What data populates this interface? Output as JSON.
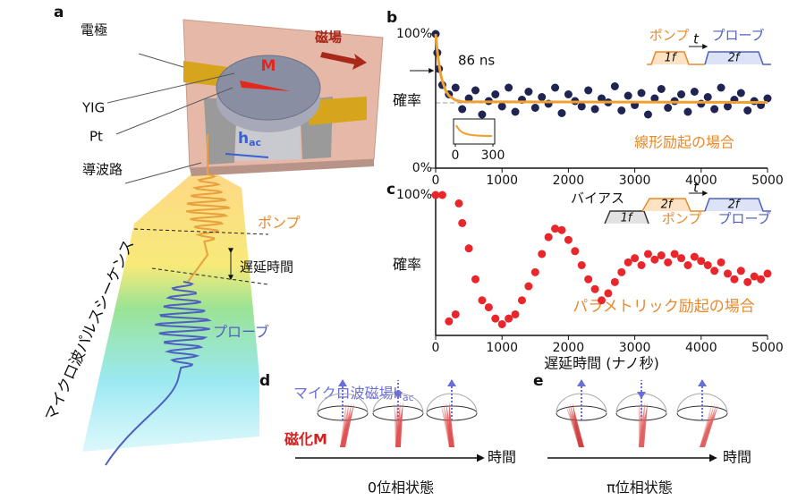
{
  "chart_data": [
    {
      "type": "scatter",
      "label": "b",
      "ylabel": "確率",
      "xlim": [
        0,
        5000
      ],
      "ylim": [
        0,
        100
      ],
      "xticks": [
        0,
        1000,
        2000,
        3000,
        4000,
        5000
      ],
      "yticks": [
        {
          "value": 0,
          "label": "0%"
        },
        {
          "value": 100,
          "label": "100%"
        }
      ],
      "series": [
        {
          "mode": "markers",
          "color": "#1f2452",
          "x": [
            0,
            25,
            50,
            100,
            200,
            300,
            400,
            500,
            600,
            700,
            800,
            900,
            1000,
            1100,
            1200,
            1300,
            1400,
            1500,
            1600,
            1700,
            1800,
            1900,
            2000,
            2100,
            2200,
            2300,
            2400,
            2500,
            2600,
            2700,
            2800,
            2900,
            3000,
            3100,
            3200,
            3300,
            3400,
            3500,
            3600,
            3700,
            3800,
            3900,
            4000,
            4100,
            4200,
            4300,
            4400,
            4500,
            4600,
            4700,
            4800,
            4900,
            5000
          ],
          "values": [
            100,
            86,
            74,
            62,
            55,
            60,
            44,
            52,
            58,
            40,
            50,
            55,
            46,
            60,
            42,
            51,
            57,
            45,
            53,
            48,
            60,
            41,
            55,
            50,
            46,
            58,
            44,
            52,
            49,
            61,
            43,
            54,
            47,
            56,
            40,
            52,
            59,
            45,
            50,
            55,
            42,
            57,
            48,
            53,
            44,
            60,
            46,
            51,
            56,
            43,
            50,
            47,
            52
          ]
        },
        {
          "mode": "line",
          "color": "#f0a030",
          "x": [
            0,
            20,
            40,
            60,
            80,
            100,
            150,
            200,
            300,
            400,
            5000
          ],
          "values": [
            100,
            89.4,
            81,
            74.4,
            69.1,
            65,
            57.9,
            54,
            50.6,
            49.5,
            49
          ]
        }
      ],
      "inset_xticks": [
        0,
        300
      ],
      "annotations": {
        "delay": "86 ns",
        "case": "線形励起の場合",
        "pump": "ポンプ",
        "probe": "プローブ",
        "pump_box": "1f",
        "probe_box": "2f",
        "t": "t"
      }
    },
    {
      "type": "scatter",
      "label": "c",
      "ylabel": "確率",
      "xlabel": "遅延時間 (ナノ秒)",
      "xlim": [
        0,
        5000
      ],
      "ylim": [
        0,
        100
      ],
      "xticks": [
        0,
        1000,
        2000,
        3000,
        4000,
        5000
      ],
      "yticks": [
        {
          "value": 100,
          "label": "100%"
        }
      ],
      "series": [
        {
          "mode": "markers",
          "color": "#e8262b",
          "x": [
            0,
            100,
            200,
            300,
            350,
            400,
            500,
            600,
            700,
            800,
            900,
            1000,
            1100,
            1200,
            1300,
            1400,
            1500,
            1600,
            1700,
            1800,
            1900,
            2000,
            2100,
            2200,
            2300,
            2400,
            2500,
            2600,
            2700,
            2800,
            2900,
            3000,
            3100,
            3200,
            3300,
            3400,
            3500,
            3600,
            3700,
            3800,
            3900,
            4000,
            4100,
            4200,
            4300,
            4400,
            4500,
            4600,
            4700,
            4800,
            4900,
            5000
          ],
          "values": [
            100,
            100,
            10,
            15,
            94,
            80,
            62,
            40,
            25,
            20,
            12,
            8,
            12,
            15,
            25,
            35,
            45,
            58,
            70,
            76,
            75,
            68,
            60,
            50,
            40,
            33,
            25,
            30,
            38,
            45,
            52,
            55,
            50,
            58,
            54,
            57,
            52,
            58,
            55,
            50,
            56,
            53,
            50,
            46,
            52,
            44,
            40,
            46,
            38,
            42,
            40,
            44
          ]
        }
      ],
      "annotations": {
        "case": "パラメトリック励起の場合",
        "bias": "バイアス",
        "bias_box": "1f",
        "pump_box": "2f",
        "pump": "ポンプ",
        "probe": "プローブ",
        "probe_box": "2f",
        "t": "t"
      }
    }
  ],
  "figure": {
    "a": {
      "label": "a",
      "electrode": "電極",
      "yig": "YIG",
      "pt": "Pt",
      "waveguide": "導波路",
      "field": "磁場",
      "m": "M",
      "h": "h",
      "h_sub": "ac",
      "pump": "ポンプ",
      "delay": "遅延時間",
      "sequence": "マイクロ波パルスシーケンス",
      "probe": "プローブ"
    },
    "d": {
      "label": "d",
      "microwave": "マイクロ波磁場h",
      "microwave_sub": "ac",
      "magnetization": "磁化M",
      "time": "時間",
      "state": "0位相状態"
    },
    "e": {
      "label": "e",
      "time": "時間",
      "state": "π位相状態"
    }
  }
}
